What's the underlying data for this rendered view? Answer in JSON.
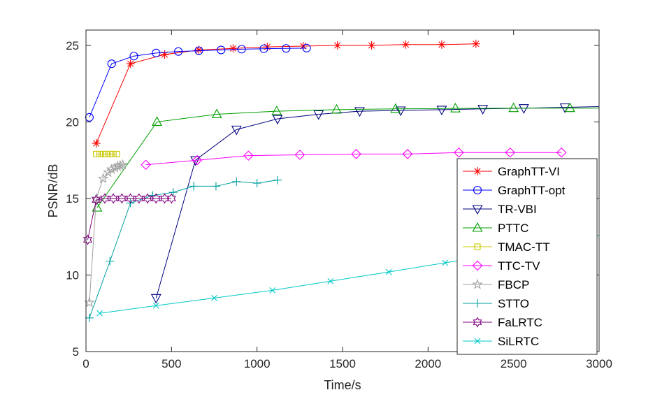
{
  "chart_data": {
    "type": "line",
    "title": "",
    "xlabel": "Time/s",
    "ylabel": "PSNR/dB",
    "xlim": [
      0,
      3000
    ],
    "ylim": [
      5,
      26
    ],
    "xticks": [
      0,
      500,
      1000,
      1500,
      2000,
      2500,
      3000
    ],
    "yticks": [
      5,
      10,
      15,
      20,
      25
    ],
    "xtick_labels": [
      "0",
      "500",
      "1000",
      "1500",
      "2000",
      "2500",
      "3000"
    ],
    "ytick_labels": [
      "5",
      "10",
      "15",
      "20",
      "25"
    ],
    "grid": false,
    "legend_position": "bottom-right",
    "series": [
      {
        "name": "GraphTT-VI",
        "color": "#ff0000",
        "marker": "asterisk",
        "x": [
          60,
          260,
          460,
          660,
          860,
          1060,
          1270,
          1470,
          1670,
          1870,
          2080,
          2280
        ],
        "y": [
          18.6,
          23.8,
          24.4,
          24.7,
          24.8,
          24.9,
          24.95,
          25.0,
          25.0,
          25.05,
          25.05,
          25.1
        ]
      },
      {
        "name": "GraphTT-opt",
        "color": "#0000ff",
        "marker": "circle",
        "x": [
          20,
          150,
          280,
          410,
          540,
          660,
          790,
          910,
          1040,
          1170,
          1290
        ],
        "y": [
          20.3,
          23.8,
          24.3,
          24.5,
          24.6,
          24.65,
          24.7,
          24.75,
          24.78,
          24.8,
          24.82
        ],
        "max_x": 1290
      },
      {
        "name": "TR-VBI",
        "color": "#00007f",
        "marker": "triangle-down",
        "x": [
          410,
          640,
          880,
          1120,
          1360,
          1600,
          1840,
          2080,
          2320,
          2560,
          2800,
          3000
        ],
        "y": [
          8.5,
          17.5,
          19.5,
          20.2,
          20.5,
          20.7,
          20.75,
          20.8,
          20.85,
          20.9,
          20.95,
          21.0
        ],
        "marker_count": 11
      },
      {
        "name": "PTTC",
        "color": "#00a000",
        "marker": "triangle-up",
        "x": [
          65,
          415,
          765,
          1115,
          1465,
          1810,
          2160,
          2500,
          2830,
          3000
        ],
        "y": [
          14.4,
          20.0,
          20.5,
          20.7,
          20.8,
          20.85,
          20.88,
          20.9,
          20.9,
          20.9
        ],
        "marker_count": 9
      },
      {
        "name": "TMAC-TT",
        "color": "#c8c800",
        "marker": "square",
        "x": [
          60,
          80,
          100,
          120,
          140,
          160,
          180
        ],
        "y": [
          17.9,
          17.9,
          17.9,
          17.9,
          17.9,
          17.9,
          17.9
        ]
      },
      {
        "name": "TTC-TV",
        "color": "#ff00ff",
        "marker": "diamond",
        "x": [
          350,
          650,
          950,
          1250,
          1580,
          1880,
          2180,
          2480,
          2780
        ],
        "y": [
          17.2,
          17.5,
          17.8,
          17.85,
          17.9,
          17.9,
          18.0,
          18.0,
          18.0
        ]
      },
      {
        "name": "FBCP",
        "color": "#a0a0a0",
        "marker": "pentagram",
        "x": [
          20,
          60,
          100,
          130,
          150,
          170,
          185,
          200,
          215
        ],
        "y": [
          8.2,
          15.0,
          16.3,
          16.7,
          16.9,
          17.0,
          17.1,
          17.15,
          17.2
        ]
      },
      {
        "name": "STTO",
        "color": "#00a0a0",
        "marker": "plus",
        "x": [
          20,
          140,
          260,
          390,
          510,
          630,
          760,
          880,
          1000,
          1120
        ],
        "y": [
          7.2,
          10.9,
          14.7,
          15.2,
          15.4,
          15.8,
          15.8,
          16.1,
          16.0,
          16.2
        ]
      },
      {
        "name": "FaLRTC",
        "color": "#7f007f",
        "marker": "hexagram",
        "x": [
          10,
          60,
          110,
          160,
          210,
          260,
          310,
          360,
          410,
          460,
          500
        ],
        "y": [
          12.3,
          14.9,
          15.0,
          15.0,
          15.0,
          15.0,
          15.0,
          15.0,
          15.0,
          15.0,
          15.0
        ]
      },
      {
        "name": "SiLRTC",
        "color": "#00c8c8",
        "marker": "x",
        "x": [
          80,
          410,
          750,
          1090,
          1430,
          1770,
          2100,
          2440,
          3000
        ],
        "y": [
          7.5,
          8.0,
          8.5,
          9.0,
          9.6,
          10.2,
          10.8,
          11.4,
          12.6
        ],
        "marker_count": 8
      }
    ]
  }
}
